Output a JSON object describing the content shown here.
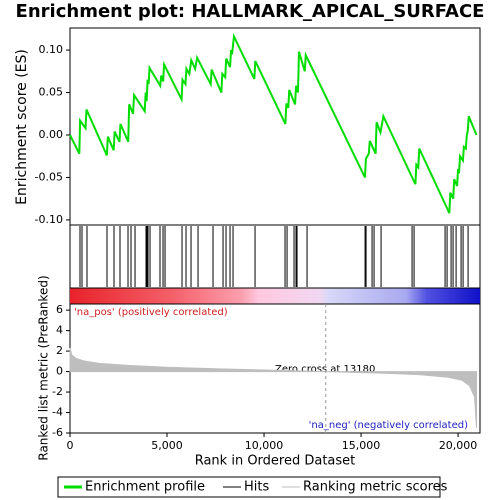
{
  "chart_data": [
    {
      "type": "line",
      "title": "Enrichment plot: HALLMARK_APICAL_SURFACE",
      "ylabel": "Enrichment score (ES)",
      "xlim": [
        0,
        21130
      ],
      "ylim": [
        -0.106,
        0.126
      ],
      "yticks": [
        {
          "value": -0.1,
          "label": "-0.10"
        },
        {
          "value": -0.05,
          "label": "-0.05"
        },
        {
          "value": 0,
          "label": "0.00"
        },
        {
          "value": 0.05,
          "label": "0.05"
        },
        {
          "value": 0.1,
          "label": "0.10"
        }
      ],
      "series": [
        {
          "name": "Enrichment profile",
          "color": "#00dd00",
          "x": [
            0,
            480,
            520,
            800,
            850,
            1900,
            1950,
            2250,
            2300,
            2550,
            2600,
            3000,
            3050,
            3250,
            3300,
            3850,
            3900,
            3950,
            4000,
            4050,
            4100,
            4650,
            4700,
            4800,
            4850,
            5750,
            5800,
            5950,
            6000,
            6150,
            6250,
            6450,
            6550,
            7250,
            7300,
            7800,
            7850,
            8000,
            8050,
            8250,
            8300,
            8350,
            8450,
            9500,
            9550,
            11100,
            11150,
            11250,
            11300,
            11600,
            11650,
            11750,
            11800,
            12100,
            12150,
            15200,
            15250,
            15400,
            15450,
            15750,
            15800,
            16000,
            16150,
            17800,
            17850,
            17950,
            18000,
            19550,
            19600,
            19750,
            19800,
            19950,
            20000,
            20050,
            20100,
            20250,
            20300,
            20400,
            20450,
            20500,
            20550,
            20950
          ],
          "values": [
            0,
            -0.022,
            0.017,
            0.008,
            0.03,
            -0.024,
            -0.002,
            -0.018,
            0.004,
            -0.008,
            0.013,
            -0.008,
            0.036,
            0.025,
            0.047,
            0.028,
            0.05,
            0.04,
            0.065,
            0.06,
            0.079,
            0.058,
            0.07,
            0.063,
            0.083,
            0.042,
            0.065,
            0.06,
            0.078,
            0.072,
            0.088,
            0.078,
            0.091,
            0.06,
            0.077,
            0.05,
            0.072,
            0.068,
            0.09,
            0.08,
            0.1,
            0.095,
            0.116,
            0.066,
            0.087,
            0.013,
            0.037,
            0.032,
            0.053,
            0.036,
            0.058,
            0.05,
            0.098,
            0.075,
            0.094,
            -0.05,
            -0.028,
            -0.022,
            -0.007,
            -0.022,
            0.015,
            0.003,
            0.022,
            -0.058,
            -0.035,
            -0.038,
            -0.016,
            -0.092,
            -0.068,
            -0.075,
            -0.052,
            -0.06,
            -0.04,
            -0.045,
            -0.025,
            -0.03,
            -0.014,
            -0.016,
            0,
            0.005,
            0.022,
            0
          ]
        }
      ],
      "hits": {
        "name": "Hits",
        "color": "#000000",
        "x": [
          515,
          619,
          876,
          1907,
          2268,
          2577,
          2990,
          3144,
          3351,
          3918,
          3969,
          4021,
          4124,
          4639,
          4794,
          4897,
          5773,
          5979,
          6237,
          6598,
          7371,
          7887,
          8041,
          8247,
          8402,
          9536,
          11082,
          11186,
          11546,
          11649,
          11701,
          12216,
          15206,
          15258,
          15567,
          15670,
          16031,
          17629,
          17732,
          19330,
          19433,
          19639,
          19742,
          19897,
          20155,
          20258,
          20515
        ]
      }
    },
    {
      "type": "area",
      "ylabel": "Ranked list metric (PreRanked)",
      "xlabel": "Rank in Ordered Dataset",
      "xlim": [
        0,
        21130
      ],
      "xticks": [
        0,
        {
          "value": 5000,
          "label": "5,000"
        },
        {
          "value": 10000,
          "label": "10,000"
        },
        {
          "value": 15000,
          "label": "15,000"
        },
        {
          "value": 20000,
          "label": "20,000"
        }
      ],
      "ylim": [
        -6,
        6.6
      ],
      "yticks": [
        -6,
        -4,
        -2,
        0,
        2,
        4,
        6
      ],
      "series": [
        {
          "name": "Ranking metric scores",
          "color": "#bebebe",
          "x": [
            0,
            100,
            300,
            700,
            1500,
            3000,
            5000,
            7500,
            10000,
            13180,
            16000,
            18000,
            19500,
            20200,
            20600,
            20850,
            20950
          ],
          "values": [
            2.3,
            1.6,
            1.3,
            1.05,
            0.8,
            0.6,
            0.42,
            0.28,
            0.15,
            0,
            -0.15,
            -0.3,
            -0.55,
            -0.85,
            -1.4,
            -2.5,
            -5.5
          ]
        }
      ],
      "zero_cross": 13180,
      "annotations": {
        "zero": "Zero cross at 13180",
        "pos": "'na_pos' (positively correlated)",
        "neg": "'na_neg' (negatively correlated)"
      }
    }
  ]
}
